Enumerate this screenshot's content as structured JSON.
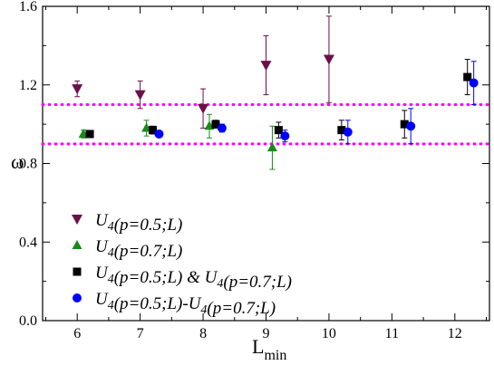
{
  "chart_data": {
    "type": "scatter",
    "xlabel": "L",
    "xlabel_sub": "min",
    "ylabel": "ω",
    "xlim": [
      5.45,
      12.55
    ],
    "ylim": [
      0.0,
      1.6
    ],
    "xticks": [
      6,
      7,
      8,
      9,
      10,
      11,
      12
    ],
    "yticks": [
      0.0,
      0.4,
      0.8,
      1.2,
      1.6
    ],
    "ytick_labels": [
      "0.0",
      "0.4",
      "0.8",
      "1.2",
      "1.6"
    ],
    "reference_lines": [
      {
        "y": 1.1,
        "color": "#ff00ff",
        "style": "dotted"
      },
      {
        "y": 0.9,
        "color": "#ff00ff",
        "style": "dotted"
      }
    ],
    "series": [
      {
        "key": "s1",
        "marker": "triangle-down",
        "color": "#6b0f4a",
        "legend_parts": [
          {
            "text": "U",
            "sub": "4"
          },
          {
            "text": "(p=0.5;L)"
          }
        ],
        "points": [
          {
            "x": 6.0,
            "y": 1.18,
            "err": 0.04
          },
          {
            "x": 7.0,
            "y": 1.15,
            "err": 0.07
          },
          {
            "x": 8.0,
            "y": 1.08,
            "err": 0.1
          },
          {
            "x": 9.0,
            "y": 1.3,
            "err": 0.15
          },
          {
            "x": 10.0,
            "y": 1.33,
            "err": 0.22
          }
        ]
      },
      {
        "key": "s2",
        "marker": "triangle-up",
        "color": "#1a8a1a",
        "legend_parts": [
          {
            "text": "U",
            "sub": "4"
          },
          {
            "text": "(p=0.7;L)"
          }
        ],
        "points": [
          {
            "x": 6.1,
            "y": 0.95,
            "err": 0.02
          },
          {
            "x": 7.1,
            "y": 0.98,
            "err": 0.04
          },
          {
            "x": 8.1,
            "y": 0.99,
            "err": 0.06
          },
          {
            "x": 9.1,
            "y": 0.88,
            "err": 0.11
          }
        ]
      },
      {
        "key": "s3",
        "marker": "square",
        "color": "#000000",
        "legend_parts": [
          {
            "text": "U",
            "sub": "4"
          },
          {
            "text": "(p=0.5;L) & "
          },
          {
            "text": "U",
            "sub": "4"
          },
          {
            "text": "(p=0.7;L)"
          }
        ],
        "points": [
          {
            "x": 6.2,
            "y": 0.95,
            "err": 0.01
          },
          {
            "x": 7.2,
            "y": 0.97,
            "err": 0.02
          },
          {
            "x": 8.2,
            "y": 1.0,
            "err": 0.02
          },
          {
            "x": 9.2,
            "y": 0.97,
            "err": 0.04
          },
          {
            "x": 10.2,
            "y": 0.97,
            "err": 0.05
          },
          {
            "x": 11.2,
            "y": 1.0,
            "err": 0.07
          },
          {
            "x": 12.2,
            "y": 1.24,
            "err": 0.09
          }
        ]
      },
      {
        "key": "s4",
        "marker": "circle",
        "color": "#0000ff",
        "legend_parts": [
          {
            "text": "U",
            "sub": "4"
          },
          {
            "text": "(p=0.5;L)-"
          },
          {
            "text": "U",
            "sub": "4"
          },
          {
            "text": "(p=0.7;L)"
          }
        ],
        "points": [
          {
            "x": 7.3,
            "y": 0.95,
            "err": 0.01
          },
          {
            "x": 8.3,
            "y": 0.98,
            "err": 0.02
          },
          {
            "x": 9.3,
            "y": 0.94,
            "err": 0.03
          },
          {
            "x": 10.3,
            "y": 0.96,
            "err": 0.06
          },
          {
            "x": 11.3,
            "y": 0.99,
            "err": 0.09
          },
          {
            "x": 12.3,
            "y": 1.21,
            "err": 0.11
          }
        ]
      }
    ]
  }
}
